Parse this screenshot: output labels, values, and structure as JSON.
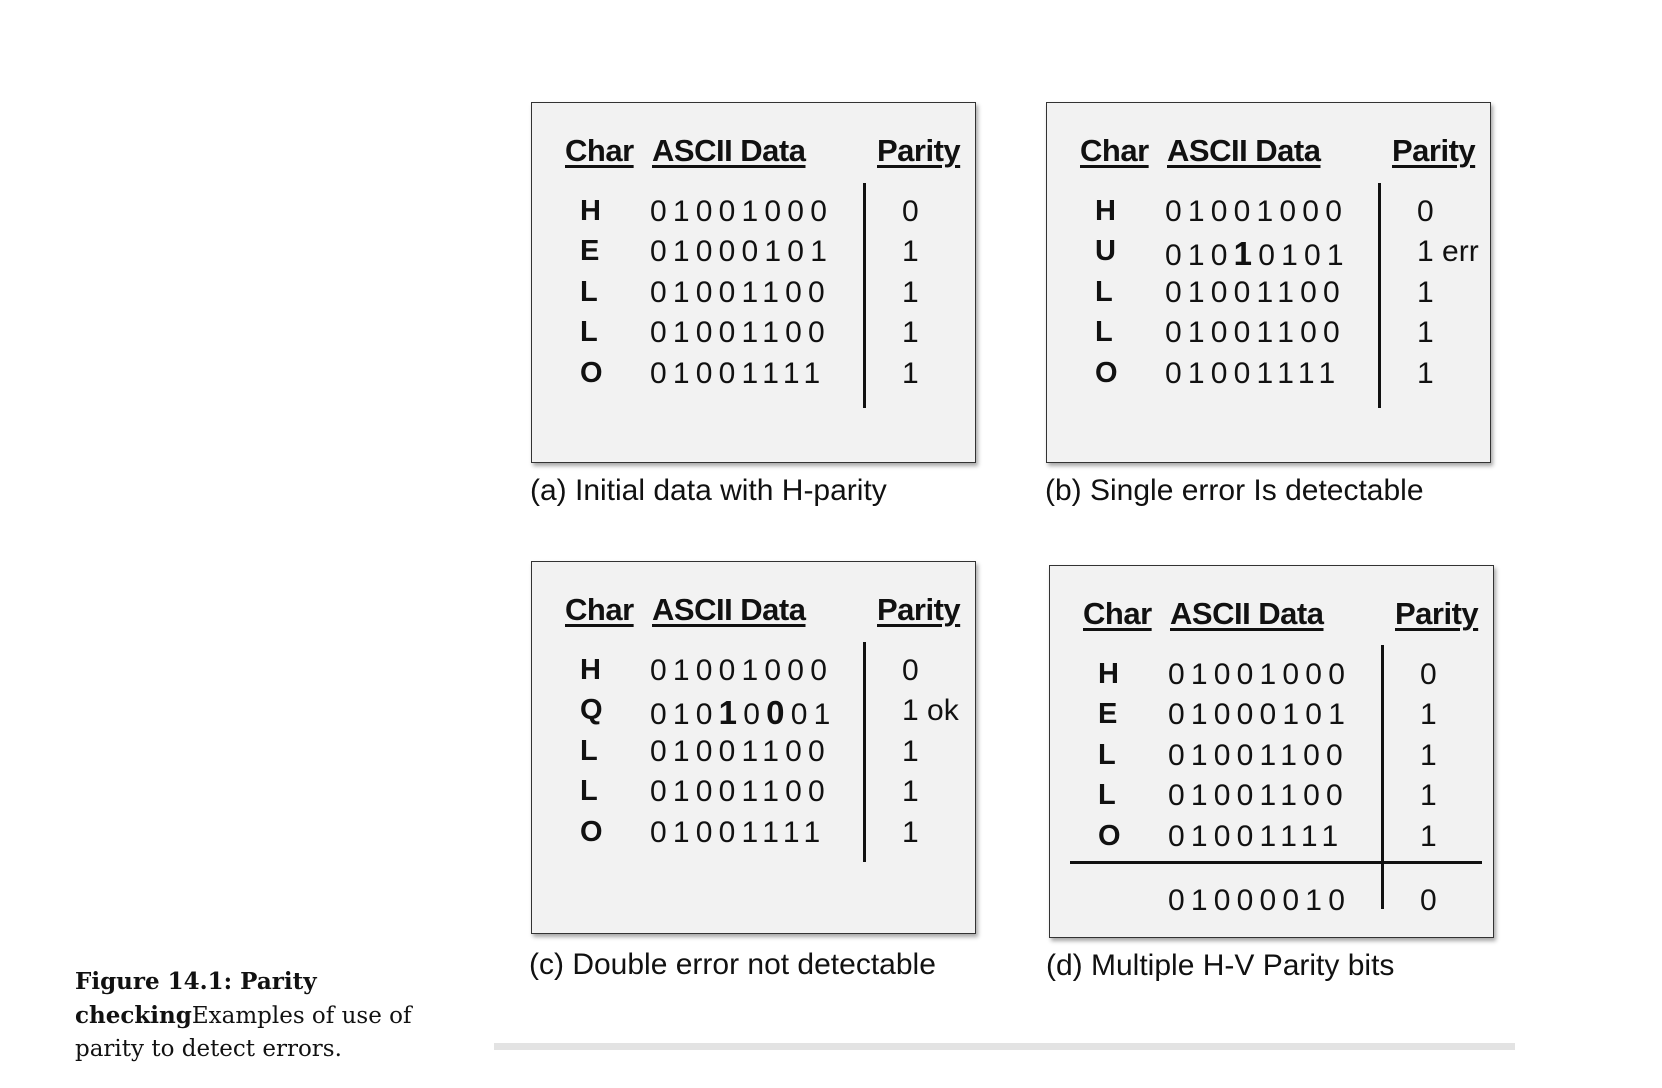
{
  "headers": {
    "char": "Char",
    "ascii": "ASCII Data",
    "parity": "Parity"
  },
  "panels": [
    {
      "caption": "(a)  Initial data with H-parity",
      "rows": [
        {
          "char": "H",
          "bits": "01001000",
          "parity": "0"
        },
        {
          "char": "E",
          "bits": "01000101",
          "parity": "1"
        },
        {
          "char": "L",
          "bits": "01001100",
          "parity": "1"
        },
        {
          "char": "L",
          "bits": "01001100",
          "parity": "1"
        },
        {
          "char": "O",
          "bits": "01001111",
          "parity": "1"
        }
      ]
    },
    {
      "caption": "(b)  Single error Is detectable",
      "rows": [
        {
          "char": "H",
          "bits": "01001000",
          "parity": "0"
        },
        {
          "char": "U",
          "bits": "01010101",
          "parity": "1 err",
          "bold_bits": [
            3
          ]
        },
        {
          "char": "L",
          "bits": "01001100",
          "parity": "1"
        },
        {
          "char": "L",
          "bits": "01001100",
          "parity": "1"
        },
        {
          "char": "O",
          "bits": "01001111",
          "parity": "1"
        }
      ]
    },
    {
      "caption": "(c)  Double error not detectable",
      "rows": [
        {
          "char": "H",
          "bits": "01001000",
          "parity": "0"
        },
        {
          "char": "Q",
          "bits": "01010001",
          "parity": "1 ok",
          "bold_bits": [
            3,
            5
          ]
        },
        {
          "char": "L",
          "bits": "01001100",
          "parity": "1"
        },
        {
          "char": "L",
          "bits": "01001100",
          "parity": "1"
        },
        {
          "char": "O",
          "bits": "01001111",
          "parity": "1"
        }
      ]
    },
    {
      "caption": "(d)  Multiple H-V Parity bits",
      "rows": [
        {
          "char": "H",
          "bits": "01001000",
          "parity": "0"
        },
        {
          "char": "E",
          "bits": "01000101",
          "parity": "1"
        },
        {
          "char": "L",
          "bits": "01001100",
          "parity": "1"
        },
        {
          "char": "L",
          "bits": "01001100",
          "parity": "1"
        },
        {
          "char": "O",
          "bits": "01001111",
          "parity": "1"
        }
      ],
      "vertical_parity": {
        "bits": "01000010",
        "parity": "0"
      }
    }
  ],
  "figure_caption": {
    "label": "Figure 14.1: Parity checking",
    "text": "Examples of use of parity to detect errors."
  }
}
